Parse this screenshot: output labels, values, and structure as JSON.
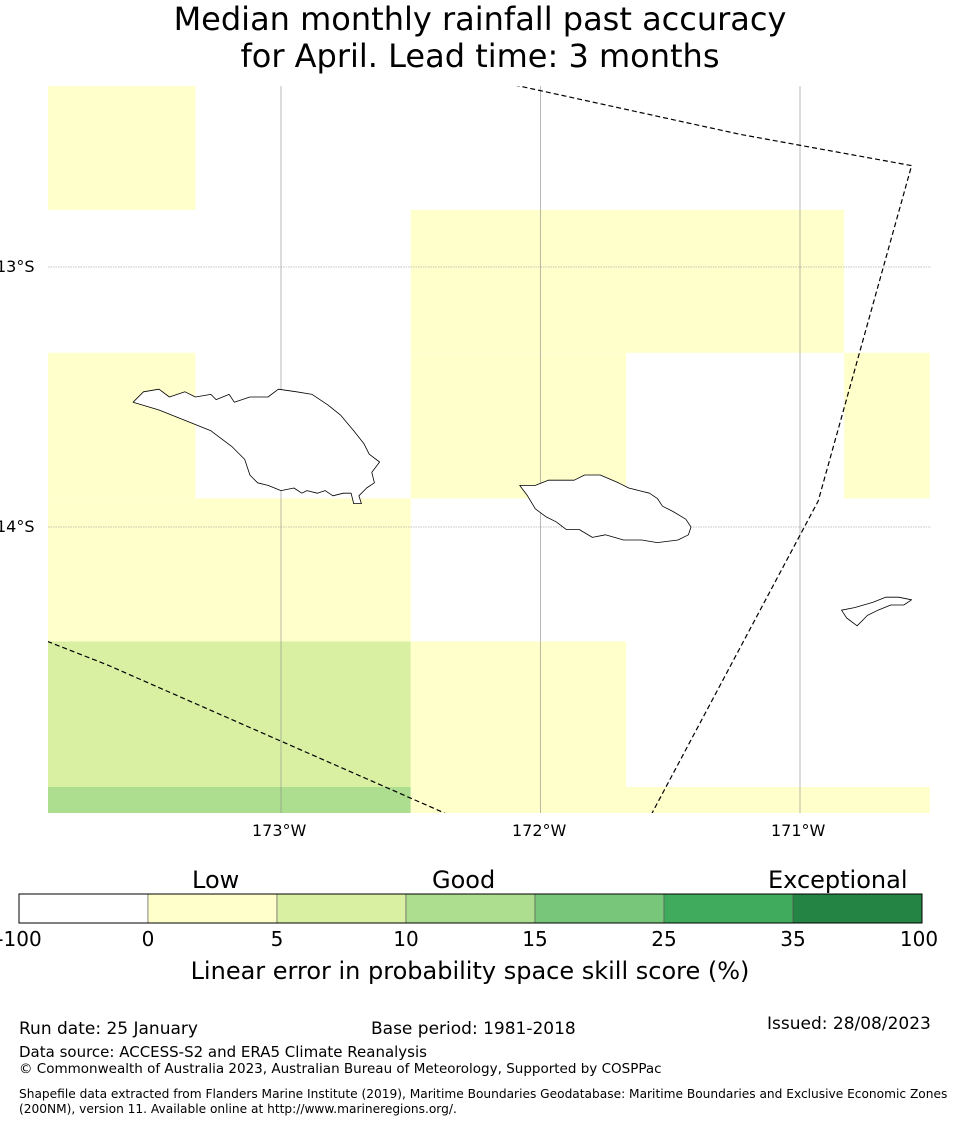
{
  "title": {
    "line1": "Median monthly rainfall past accuracy",
    "line2": "for April. Lead time: 3 months"
  },
  "map": {
    "lat_labels": [
      "13°S",
      "14°S"
    ],
    "lon_labels": [
      "173°W",
      "172°W",
      "171°W"
    ],
    "lon_range": [
      -173.9,
      -170.5
    ],
    "lat_range": [
      -12.3,
      -15.1
    ],
    "grid_cells": [
      {
        "lon": [
          -173.9,
          -173.33
        ],
        "lat": [
          -12.3,
          -12.78
        ],
        "category": 1
      },
      {
        "lon": [
          -172.5,
          -170.83
        ],
        "lat": [
          -12.78,
          -13.33
        ],
        "category": 1
      },
      {
        "lon": [
          -173.9,
          -173.33
        ],
        "lat": [
          -13.33,
          -13.89
        ],
        "category": 1
      },
      {
        "lon": [
          -172.5,
          -171.67
        ],
        "lat": [
          -13.33,
          -13.89
        ],
        "category": 1
      },
      {
        "lon": [
          -170.83,
          -170.5
        ],
        "lat": [
          -13.33,
          -13.89
        ],
        "category": 1
      },
      {
        "lon": [
          -173.9,
          -172.5
        ],
        "lat": [
          -13.89,
          -14.44
        ],
        "category": 1
      },
      {
        "lon": [
          -173.9,
          -172.5
        ],
        "lat": [
          -14.44,
          -15.0
        ],
        "category": 2
      },
      {
        "lon": [
          -172.5,
          -171.67
        ],
        "lat": [
          -14.44,
          -15.0
        ],
        "category": 1
      },
      {
        "lon": [
          -173.9,
          -172.5
        ],
        "lat": [
          -15.0,
          -15.1
        ],
        "category": 3
      },
      {
        "lon": [
          -172.5,
          -170.5
        ],
        "lat": [
          -15.0,
          -15.1
        ],
        "category": 1
      }
    ],
    "eez_boundaries": [
      {
        "name": "boundary-north-east",
        "points": [
          [
            -172.1,
            -12.3
          ],
          [
            -171.23,
            -12.49
          ],
          [
            -170.57,
            -12.61
          ],
          [
            -170.93,
            -13.9
          ],
          [
            -171.57,
            -15.1
          ]
        ]
      },
      {
        "name": "boundary-south-west",
        "points": [
          [
            -173.9,
            -14.44
          ],
          [
            -173.67,
            -14.53
          ],
          [
            -172.37,
            -15.1
          ]
        ]
      }
    ],
    "islands": [
      {
        "name": "island-savaii",
        "points": [
          [
            -173.57,
            -13.52
          ],
          [
            -173.53,
            -13.48
          ],
          [
            -173.47,
            -13.47
          ],
          [
            -173.43,
            -13.5
          ],
          [
            -173.37,
            -13.48
          ],
          [
            -173.33,
            -13.5
          ],
          [
            -173.27,
            -13.49
          ],
          [
            -173.25,
            -13.51
          ],
          [
            -173.2,
            -13.49
          ],
          [
            -173.18,
            -13.52
          ],
          [
            -173.12,
            -13.5
          ],
          [
            -173.05,
            -13.5
          ],
          [
            -173.01,
            -13.47
          ],
          [
            -172.94,
            -13.48
          ],
          [
            -172.88,
            -13.49
          ],
          [
            -172.82,
            -13.53
          ],
          [
            -172.77,
            -13.57
          ],
          [
            -172.72,
            -13.63
          ],
          [
            -172.68,
            -13.68
          ],
          [
            -172.66,
            -13.72
          ],
          [
            -172.62,
            -13.75
          ],
          [
            -172.65,
            -13.79
          ],
          [
            -172.64,
            -13.83
          ],
          [
            -172.67,
            -13.85
          ],
          [
            -172.7,
            -13.88
          ],
          [
            -172.69,
            -13.91
          ],
          [
            -172.72,
            -13.91
          ],
          [
            -172.73,
            -13.87
          ],
          [
            -172.76,
            -13.87
          ],
          [
            -172.8,
            -13.88
          ],
          [
            -172.83,
            -13.86
          ],
          [
            -172.86,
            -13.87
          ],
          [
            -172.9,
            -13.86
          ],
          [
            -172.92,
            -13.87
          ],
          [
            -172.95,
            -13.85
          ],
          [
            -173.0,
            -13.86
          ],
          [
            -173.05,
            -13.84
          ],
          [
            -173.09,
            -13.83
          ],
          [
            -173.12,
            -13.8
          ],
          [
            -173.14,
            -13.74
          ],
          [
            -173.19,
            -13.69
          ],
          [
            -173.27,
            -13.63
          ],
          [
            -173.37,
            -13.59
          ],
          [
            -173.47,
            -13.55
          ],
          [
            -173.57,
            -13.52
          ]
        ]
      },
      {
        "name": "island-upolu",
        "points": [
          [
            -172.08,
            -13.84
          ],
          [
            -172.02,
            -13.84
          ],
          [
            -171.97,
            -13.82
          ],
          [
            -171.92,
            -13.82
          ],
          [
            -171.87,
            -13.82
          ],
          [
            -171.83,
            -13.8
          ],
          [
            -171.77,
            -13.8
          ],
          [
            -171.7,
            -13.83
          ],
          [
            -171.66,
            -13.85
          ],
          [
            -171.62,
            -13.86
          ],
          [
            -171.58,
            -13.87
          ],
          [
            -171.55,
            -13.89
          ],
          [
            -171.53,
            -13.92
          ],
          [
            -171.49,
            -13.94
          ],
          [
            -171.44,
            -13.97
          ],
          [
            -171.42,
            -14.0
          ],
          [
            -171.43,
            -14.03
          ],
          [
            -171.47,
            -14.05
          ],
          [
            -171.55,
            -14.06
          ],
          [
            -171.61,
            -14.05
          ],
          [
            -171.68,
            -14.05
          ],
          [
            -171.75,
            -14.03
          ],
          [
            -171.8,
            -14.04
          ],
          [
            -171.85,
            -14.01
          ],
          [
            -171.9,
            -14.01
          ],
          [
            -171.94,
            -13.98
          ],
          [
            -171.98,
            -13.96
          ],
          [
            -172.02,
            -13.93
          ],
          [
            -172.05,
            -13.88
          ],
          [
            -172.08,
            -13.84
          ]
        ]
      },
      {
        "name": "island-tutuila",
        "points": [
          [
            -170.84,
            -14.32
          ],
          [
            -170.79,
            -14.31
          ],
          [
            -170.72,
            -14.29
          ],
          [
            -170.67,
            -14.27
          ],
          [
            -170.62,
            -14.27
          ],
          [
            -170.57,
            -14.28
          ],
          [
            -170.6,
            -14.3
          ],
          [
            -170.65,
            -14.3
          ],
          [
            -170.7,
            -14.32
          ],
          [
            -170.74,
            -14.34
          ],
          [
            -170.78,
            -14.38
          ],
          [
            -170.82,
            -14.35
          ],
          [
            -170.84,
            -14.32
          ]
        ]
      }
    ]
  },
  "colorbar": {
    "categories": [
      "Low",
      "Good",
      "Exceptional"
    ],
    "ticks": [
      "-100",
      "0",
      "5",
      "10",
      "15",
      "25",
      "35",
      "100"
    ],
    "colors": [
      "#ffffff",
      "#ffffcc",
      "#d9f0a3",
      "#addd8e",
      "#78c679",
      "#41ab5d",
      "#238443"
    ],
    "xlabel": "Linear error in probability space skill score (%)"
  },
  "footer": {
    "run_date": "Run date: 25 January",
    "base_period": "Base period: 1981-2018",
    "issued": "Issued: 28/08/2023",
    "data_source": "Data source: ACCESS-S2 and ERA5 Climate Reanalysis",
    "copyright": "© Commonwealth of Australia 2023, Australian Bureau of Meteorology, Supported by COSPPac",
    "shapefile_line1": "Shapefile data extracted from Flanders Marine Institute (2019), Maritime Boundaries Geodatabase: Maritime Boundaries and Exclusive Economic Zones",
    "shapefile_line2": "(200NM), version 11. Available online at http://www.marineregions.org/."
  }
}
